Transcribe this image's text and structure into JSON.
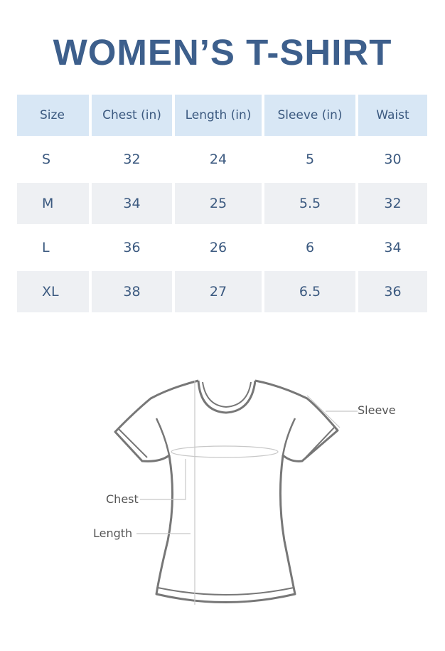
{
  "title": "WOMEN’S T-SHIRT",
  "table": {
    "headers": [
      "Size",
      "Chest (in)",
      "Length (in)",
      "Sleeve (in)",
      "Waist"
    ],
    "rows": [
      [
        "S",
        "32",
        "24",
        "5",
        "30"
      ],
      [
        "M",
        "34",
        "25",
        "5.5",
        "32"
      ],
      [
        "L",
        "36",
        "26",
        "6",
        "34"
      ],
      [
        "XL",
        "38",
        "27",
        "6.5",
        "36"
      ]
    ]
  },
  "diagram": {
    "sleeve_label": "Sleeve",
    "chest_label": "Chest",
    "length_label": "Length"
  },
  "colors": {
    "title": "#3d5f8c",
    "header_bg": "#d8e7f5",
    "alt_row_bg": "#eef0f3",
    "text": "#3c5a80"
  }
}
